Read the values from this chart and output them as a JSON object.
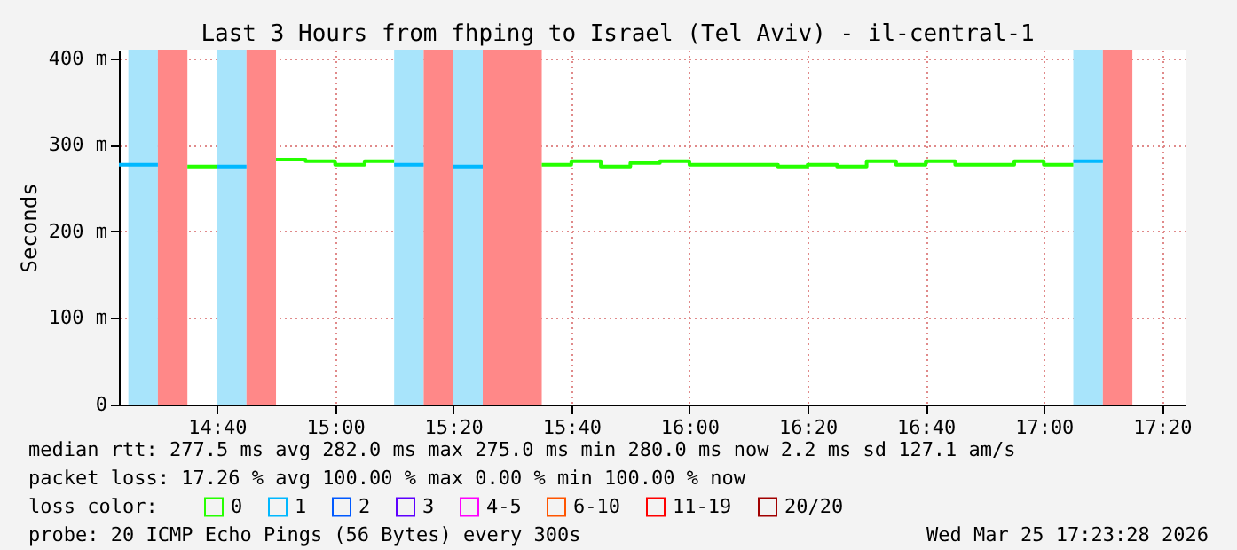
{
  "chart_data": {
    "type": "line",
    "title": "Last 3 Hours from fhping to Israel (Tel Aviv) - il-central-1",
    "ylabel": "Seconds",
    "legend_title": "loss color:",
    "series": [
      {
        "name": "0",
        "color": "#26ff00",
        "x": [
          14.5833,
          14.6667,
          null,
          14.8333,
          14.9167,
          14.9167,
          15,
          15,
          15.0833,
          15.0833,
          15.1667,
          null,
          15.5833,
          15.6667,
          15.6667,
          15.75,
          15.75,
          15.8333,
          15.8333,
          15.9167,
          15.9167,
          16,
          16,
          16.25,
          16.25,
          16.3333,
          16.3333,
          16.4167,
          16.4167,
          16.5,
          16.5,
          16.5833,
          16.5833,
          16.6667,
          16.6667,
          16.75,
          16.75,
          16.9167,
          16.9167,
          17,
          17,
          17.0833
        ],
        "values": [
          275,
          275,
          null,
          283,
          283,
          281,
          281,
          277,
          277,
          281,
          281,
          null,
          277,
          277,
          281,
          281,
          275,
          275,
          279,
          279,
          281,
          281,
          277,
          277,
          275,
          275,
          277,
          277,
          275,
          275,
          281,
          281,
          277,
          277,
          281,
          281,
          277,
          277,
          281,
          281,
          277,
          277
        ]
      },
      {
        "name": "1",
        "color": "#00b8ff",
        "x": [
          14.39,
          14.5,
          null,
          14.6667,
          14.75,
          null,
          15.1667,
          15.25,
          null,
          15.3333,
          15.4167,
          null,
          17.0833,
          17.1667
        ],
        "values": [
          277,
          277,
          null,
          275,
          275,
          null,
          277,
          277,
          null,
          275,
          275,
          null,
          281,
          281
        ]
      },
      {
        "name": "2",
        "color": "#0059ff"
      },
      {
        "name": "3",
        "color": "#5e00ff"
      },
      {
        "name": "4-5",
        "color": "#ff00ff"
      },
      {
        "name": "6-10",
        "color": "#ff5500"
      },
      {
        "name": "11-19",
        "color": "#ff0000"
      },
      {
        "name": "20/20",
        "color": "#a10000"
      }
    ],
    "bands": [
      {
        "axis": "x",
        "from": 14.4167,
        "to": 14.5,
        "color": "#a8e4fb"
      },
      {
        "axis": "x",
        "from": 14.5,
        "to": 14.5833,
        "color": "#ff8888"
      },
      {
        "axis": "x",
        "from": 14.6667,
        "to": 14.75,
        "color": "#a8e4fb"
      },
      {
        "axis": "x",
        "from": 14.75,
        "to": 14.8333,
        "color": "#ff8888"
      },
      {
        "axis": "x",
        "from": 15.1667,
        "to": 15.25,
        "color": "#a8e4fb"
      },
      {
        "axis": "x",
        "from": 15.25,
        "to": 15.3333,
        "color": "#ff8888"
      },
      {
        "axis": "x",
        "from": 15.3333,
        "to": 15.4167,
        "color": "#a8e4fb"
      },
      {
        "axis": "x",
        "from": 15.4167,
        "to": 15.5833,
        "color": "#ff8888"
      },
      {
        "axis": "x",
        "from": 17.0833,
        "to": 17.1667,
        "color": "#a8e4fb"
      },
      {
        "axis": "x",
        "from": 17.1667,
        "to": 17.25,
        "color": "#ff8888"
      }
    ],
    "xlim": [
      14.39,
      17.4
    ],
    "xticks": [
      {
        "value": 14.6667,
        "label": "14:40"
      },
      {
        "value": 15,
        "label": "15:00"
      },
      {
        "value": 15.3333,
        "label": "15:20"
      },
      {
        "value": 15.6667,
        "label": "15:40"
      },
      {
        "value": 16,
        "label": "16:00"
      },
      {
        "value": 16.3333,
        "label": "16:20"
      },
      {
        "value": 16.6667,
        "label": "16:40"
      },
      {
        "value": 17,
        "label": "17:00"
      },
      {
        "value": 17.3333,
        "label": "17:20"
      }
    ],
    "ylim": [
      0,
      410
    ],
    "yticks": [
      0,
      {
        "value": 100,
        "label": "100 m"
      },
      {
        "value": 200,
        "label": "200 m"
      },
      {
        "value": 300,
        "label": "300 m"
      },
      {
        "value": 400,
        "label": "400 m"
      }
    ],
    "grid": true,
    "legend": "bottom",
    "annotations": [
      "median rtt: 277.5 ms avg 282.0 ms max 275.0 ms min 280.0 ms now 2.2 ms sd 127.1 am/s",
      "packet loss: 17.26 % avg 100.00 % max 0.00 % min 100.00 % now",
      "probe: 20 ICMP Echo Pings (56 Bytes) every 300s",
      "Wed Mar 25 17:23:28 2026"
    ]
  }
}
